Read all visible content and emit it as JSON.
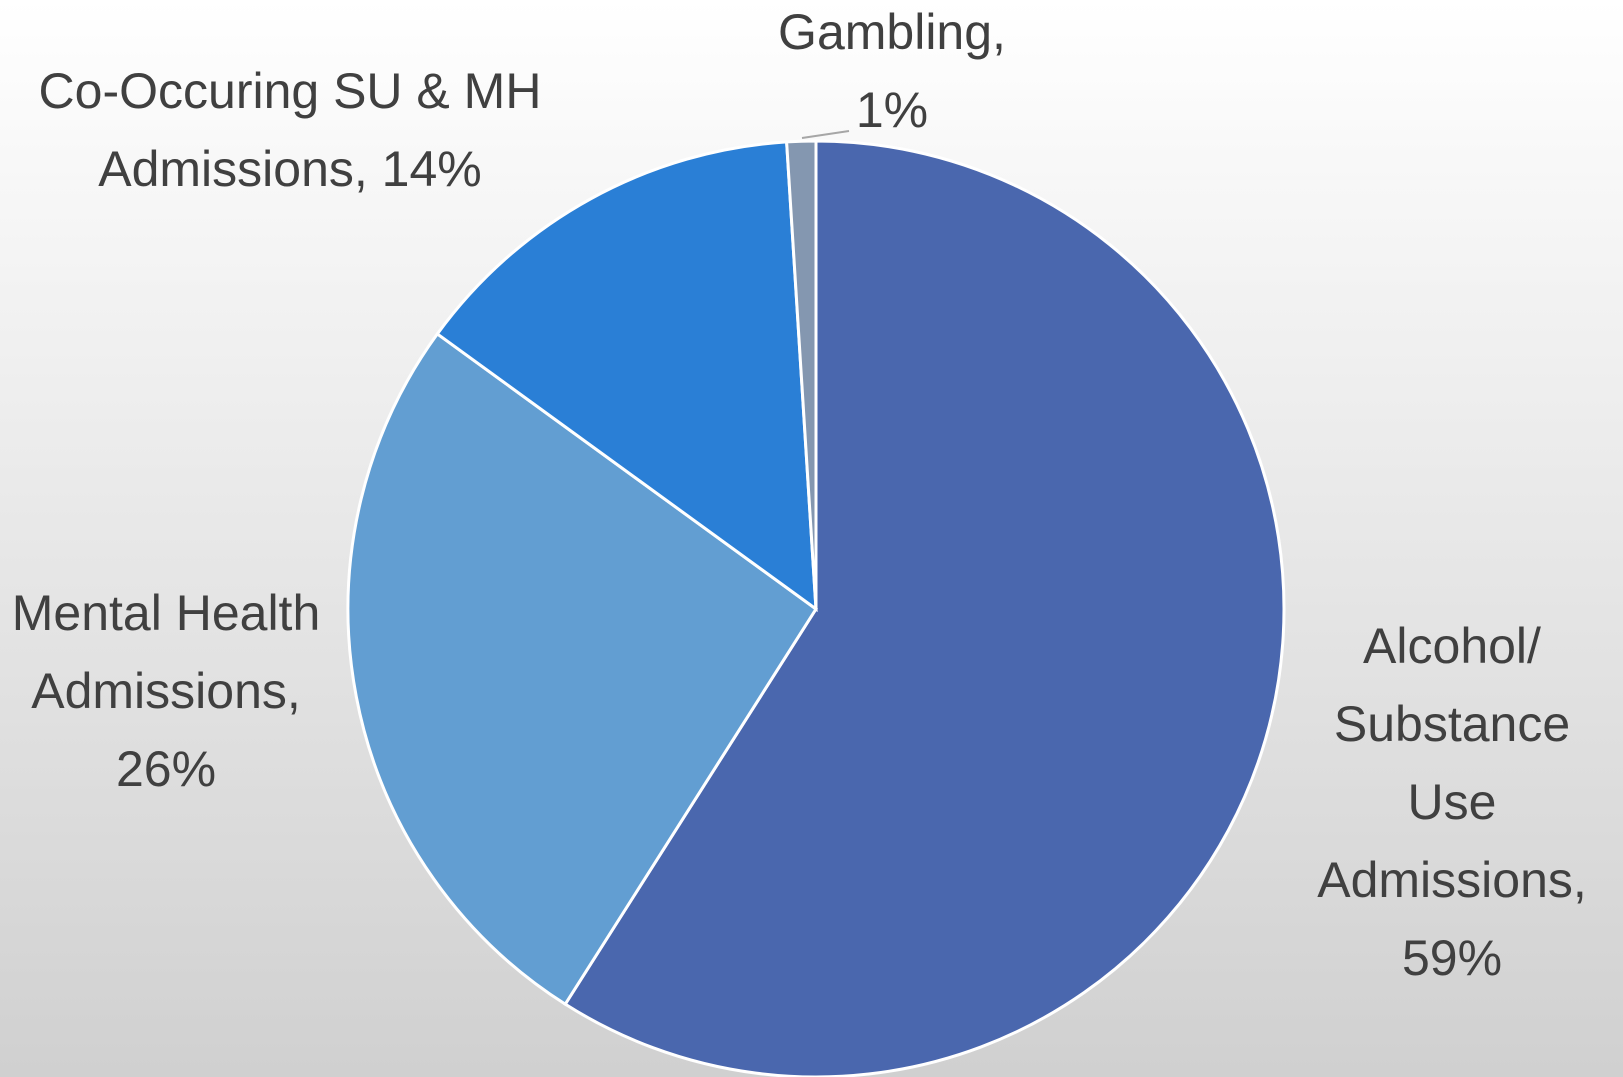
{
  "chart_data": {
    "type": "pie",
    "categories": [
      "Alcohol/ Substance Use Admissions",
      "Mental Health Admissions",
      "Co-Occuring SU & MH Admissions",
      "Gambling"
    ],
    "values": [
      59,
      26,
      14,
      1
    ],
    "value_labels": [
      "Alcohol/ Substance Use Admissions, 59%",
      "Mental Health Admissions, 26%",
      "Co-Occuring SU & MH Admissions, 14%",
      "Gambling, 1%"
    ],
    "colors": [
      "#4a67ae",
      "#629ed2",
      "#2a7fd6",
      "#8497b0"
    ]
  }
}
